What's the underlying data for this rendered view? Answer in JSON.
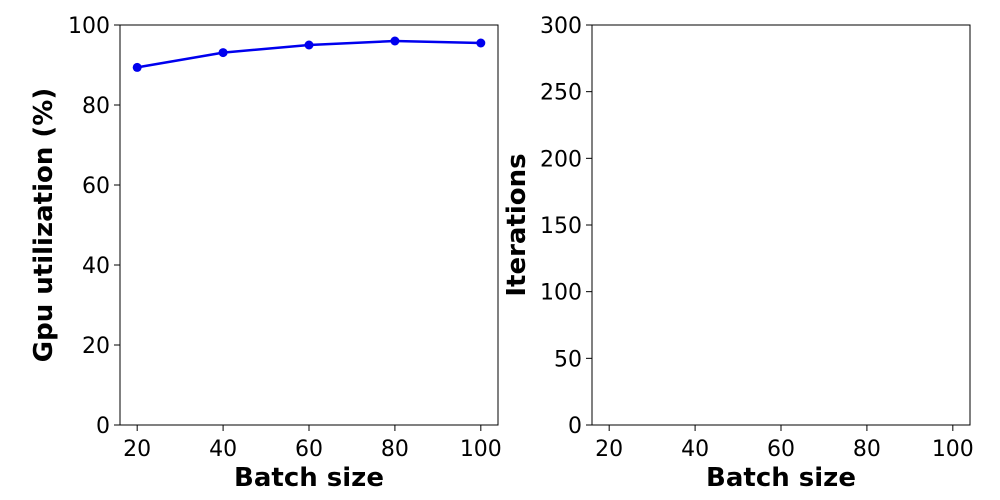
{
  "chart_data": [
    {
      "type": "line",
      "xlabel": "Batch size",
      "ylabel": "Gpu utilization (%)",
      "x": [
        20,
        40,
        60,
        80,
        100
      ],
      "series": [
        {
          "values": [
            89.4,
            93.1,
            95.0,
            96.0,
            95.5
          ],
          "color": "#0000ee",
          "marker": "circle"
        }
      ],
      "xticks": [
        20,
        40,
        60,
        80,
        100
      ],
      "yticks": [
        0,
        20,
        40,
        60,
        80,
        100
      ],
      "xlim": [
        16,
        104
      ],
      "ylim": [
        0,
        100
      ],
      "grid": false
    },
    {
      "type": "line",
      "xlabel": "Batch size",
      "ylabel": "Iterations",
      "x": [],
      "series": [],
      "xticks": [
        20,
        40,
        60,
        80,
        100
      ],
      "yticks": [
        0,
        50,
        100,
        150,
        200,
        250,
        300
      ],
      "xlim": [
        16,
        104
      ],
      "ylim": [
        0,
        300
      ],
      "grid": false
    }
  ]
}
